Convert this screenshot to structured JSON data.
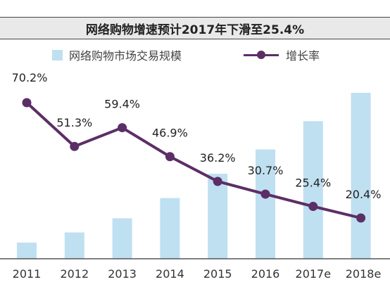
{
  "chart_data": {
    "type": "bar+line",
    "title": "网络购物增速预计2017年下滑至25.4%",
    "categories": [
      "2011",
      "2012",
      "2013",
      "2014",
      "2015",
      "2016",
      "2017e",
      "2018e"
    ],
    "series": [
      {
        "name": "网络购物市场交易规模",
        "type": "bar",
        "values": [
          0.8,
          1.3,
          2.0,
          3.0,
          4.2,
          5.4,
          6.8,
          8.2
        ]
      },
      {
        "name": "增长率",
        "type": "line",
        "values": [
          70.2,
          51.3,
          59.4,
          46.9,
          36.2,
          30.7,
          25.4,
          20.4
        ],
        "labels": [
          "70.2%",
          "51.3%",
          "59.4%",
          "46.9%",
          "36.2%",
          "30.7%",
          "25.4%",
          "20.4%"
        ]
      }
    ],
    "colors": {
      "bar": "#bfe0f1",
      "line": "#5c2e66",
      "title_bg": "#e9e9e9"
    },
    "legend_position": "top"
  }
}
